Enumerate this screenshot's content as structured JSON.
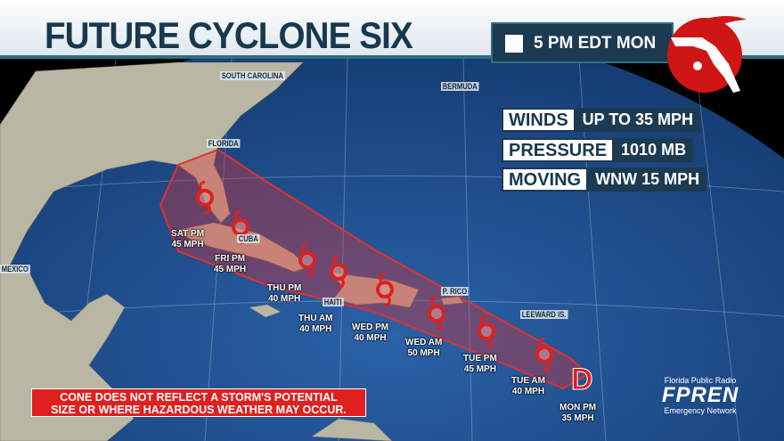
{
  "header": {
    "title": "FUTURE CYCLONE SIX",
    "time": "5 PM EDT MON"
  },
  "info": [
    {
      "label": "WINDS",
      "value": "UP TO 35 MPH"
    },
    {
      "label": "PRESSURE",
      "value": "1010 MB"
    },
    {
      "label": "MOVING",
      "value": "WNW 15 MPH"
    }
  ],
  "places": {
    "sc": "SOUTH CAROLINA",
    "bermuda": "BERMUDA",
    "florida": "FLORIDA",
    "cuba": "CUBA",
    "haiti": "HAITI",
    "prico": "P. RICO",
    "leeward": "LEEWARD IS.",
    "mexico": "MEXICO"
  },
  "track": [
    {
      "time": "MON PM",
      "wind": "35 MPH",
      "marker": "D"
    },
    {
      "time": "TUE AM",
      "wind": "40 MPH"
    },
    {
      "time": "TUE PM",
      "wind": "45 MPH"
    },
    {
      "time": "WED AM",
      "wind": "50 MPH"
    },
    {
      "time": "WED PM",
      "wind": "40 MPH"
    },
    {
      "time": "THU AM",
      "wind": "40 MPH"
    },
    {
      "time": "THU PM",
      "wind": "40 MPH"
    },
    {
      "time": "FRI PM",
      "wind": "45 MPH"
    },
    {
      "time": "SAT PM",
      "wind": "45 MPH"
    }
  ],
  "disclaimer": {
    "line1": "CONE DOES NOT REFLECT A STORM'S POTENTIAL",
    "line2": "SIZE OR WHERE HAZARDOUS WEATHER MAY OCCUR."
  },
  "branding": {
    "line1": "Florida Public Radio",
    "name": "FPREN",
    "line2": "Emergency Network"
  },
  "colors": {
    "ocean": "#1d4a8a",
    "cone": "#e03030",
    "header_text": "#17394f",
    "disclaimer": "#e01f1f"
  }
}
